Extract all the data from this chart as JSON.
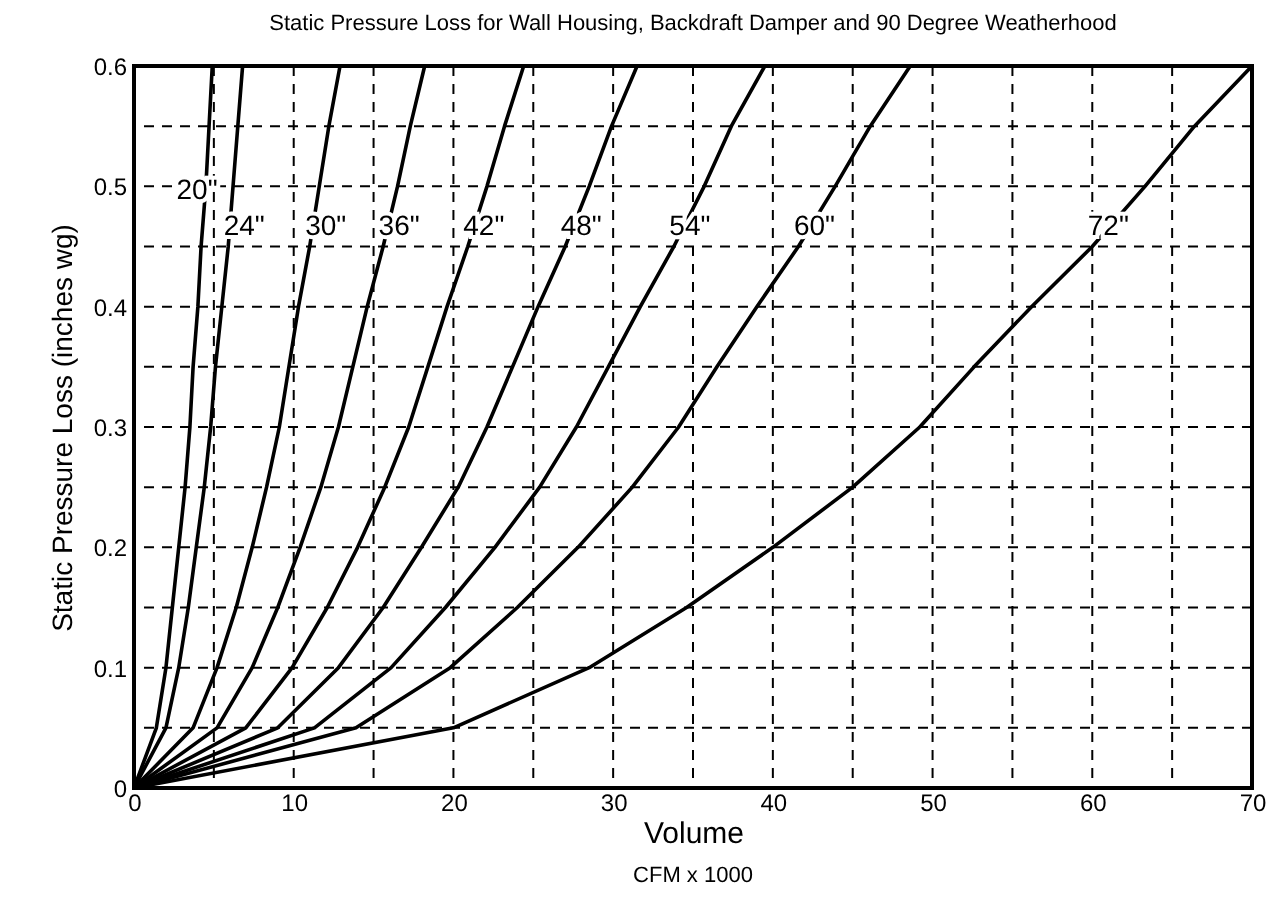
{
  "chart_data": {
    "type": "line",
    "title": "Static Pressure Loss for Wall Housing, Backdraft Damper and 90 Degree Weatherhood",
    "xlabel": "Volume",
    "ylabel": "Static Pressure Loss (inches wg)",
    "annotations": [
      "CFM x 1000"
    ],
    "series": [
      {
        "name": "20\"",
        "color": "#000000",
        "x": [
          0,
          1.4,
          2.0,
          2.4,
          2.8,
          3.2,
          3.5,
          3.7,
          4.0,
          4.2,
          4.5,
          4.7,
          4.9
        ],
        "values": [
          0,
          0.05,
          0.1,
          0.15,
          0.2,
          0.25,
          0.3,
          0.35,
          0.4,
          0.45,
          0.5,
          0.55,
          0.6
        ]
      },
      {
        "name": "24\"",
        "color": "#000000",
        "x": [
          0,
          2.0,
          2.8,
          3.4,
          3.9,
          4.4,
          4.8,
          5.1,
          5.5,
          5.9,
          6.2,
          6.5,
          6.8
        ],
        "values": [
          0,
          0.05,
          0.1,
          0.15,
          0.2,
          0.25,
          0.3,
          0.35,
          0.4,
          0.45,
          0.5,
          0.55,
          0.6
        ]
      },
      {
        "name": "30\"",
        "color": "#000000",
        "x": [
          0,
          3.7,
          5.2,
          6.4,
          7.4,
          8.3,
          9.1,
          9.7,
          10.3,
          11.0,
          11.6,
          12.2,
          12.9
        ],
        "values": [
          0,
          0.05,
          0.1,
          0.15,
          0.2,
          0.25,
          0.3,
          0.35,
          0.4,
          0.45,
          0.5,
          0.55,
          0.6
        ]
      },
      {
        "name": "36\"",
        "color": "#000000",
        "x": [
          0,
          5.2,
          7.4,
          9.0,
          10.4,
          11.7,
          12.8,
          13.7,
          14.6,
          15.6,
          16.5,
          17.3,
          18.2
        ],
        "values": [
          0,
          0.05,
          0.1,
          0.15,
          0.2,
          0.25,
          0.3,
          0.35,
          0.4,
          0.45,
          0.5,
          0.55,
          0.6
        ]
      },
      {
        "name": "42\"",
        "color": "#000000",
        "x": [
          0,
          7.0,
          9.9,
          12.1,
          14.0,
          15.7,
          17.2,
          18.4,
          19.6,
          20.9,
          22.1,
          23.2,
          24.4
        ],
        "values": [
          0,
          0.05,
          0.1,
          0.15,
          0.2,
          0.25,
          0.3,
          0.35,
          0.4,
          0.45,
          0.5,
          0.55,
          0.6
        ]
      },
      {
        "name": "48\"",
        "color": "#000000",
        "x": [
          0,
          9.0,
          12.8,
          15.6,
          18.0,
          20.3,
          22.1,
          23.7,
          25.3,
          27.0,
          28.5,
          29.9,
          31.5
        ],
        "values": [
          0,
          0.05,
          0.1,
          0.15,
          0.2,
          0.25,
          0.3,
          0.35,
          0.4,
          0.45,
          0.5,
          0.55,
          0.6
        ]
      },
      {
        "name": "54\"",
        "color": "#000000",
        "x": [
          0,
          11.3,
          16.1,
          19.5,
          22.6,
          25.4,
          27.7,
          29.7,
          31.7,
          33.8,
          35.7,
          37.4,
          39.5
        ],
        "values": [
          0,
          0.05,
          0.1,
          0.15,
          0.2,
          0.25,
          0.3,
          0.35,
          0.4,
          0.45,
          0.5,
          0.55,
          0.6
        ]
      },
      {
        "name": "60\"",
        "color": "#000000",
        "x": [
          0,
          13.9,
          19.8,
          24.0,
          27.8,
          31.2,
          34.1,
          36.5,
          39.0,
          41.6,
          43.9,
          46.1,
          48.6
        ],
        "values": [
          0,
          0.05,
          0.1,
          0.15,
          0.2,
          0.25,
          0.3,
          0.35,
          0.4,
          0.45,
          0.5,
          0.55,
          0.6
        ]
      },
      {
        "name": "72\"",
        "color": "#000000",
        "x": [
          0,
          20,
          28.5,
          34.6,
          40,
          45,
          49.2,
          52.6,
          56.2,
          60,
          63.3,
          66.4,
          70
        ],
        "values": [
          0,
          0.05,
          0.1,
          0.15,
          0.2,
          0.25,
          0.3,
          0.35,
          0.4,
          0.45,
          0.5,
          0.55,
          0.6
        ]
      }
    ],
    "xlim": [
      0,
      70
    ],
    "xticks": [
      0,
      {
        "value": 5,
        "label": null
      },
      10,
      {
        "value": 15,
        "label": null
      },
      20,
      {
        "value": 25,
        "label": null
      },
      30,
      {
        "value": 35,
        "label": null
      },
      40,
      {
        "value": 45,
        "label": null
      },
      50,
      {
        "value": 55,
        "label": null
      },
      60,
      {
        "value": 65,
        "label": null
      },
      70
    ],
    "ylim": [
      0,
      0.6
    ],
    "yticks": [
      0,
      {
        "value": 0.05,
        "label": null
      },
      0.1,
      {
        "value": 0.15,
        "label": null
      },
      0.2,
      {
        "value": 0.25,
        "label": null
      },
      0.3,
      {
        "value": 0.35,
        "label": null
      },
      0.4,
      {
        "value": 0.45,
        "label": null
      },
      0.5,
      {
        "value": 0.55,
        "label": null
      },
      0.6
    ],
    "grid": true,
    "legend": false,
    "marker": "none",
    "line_style": "solid"
  }
}
